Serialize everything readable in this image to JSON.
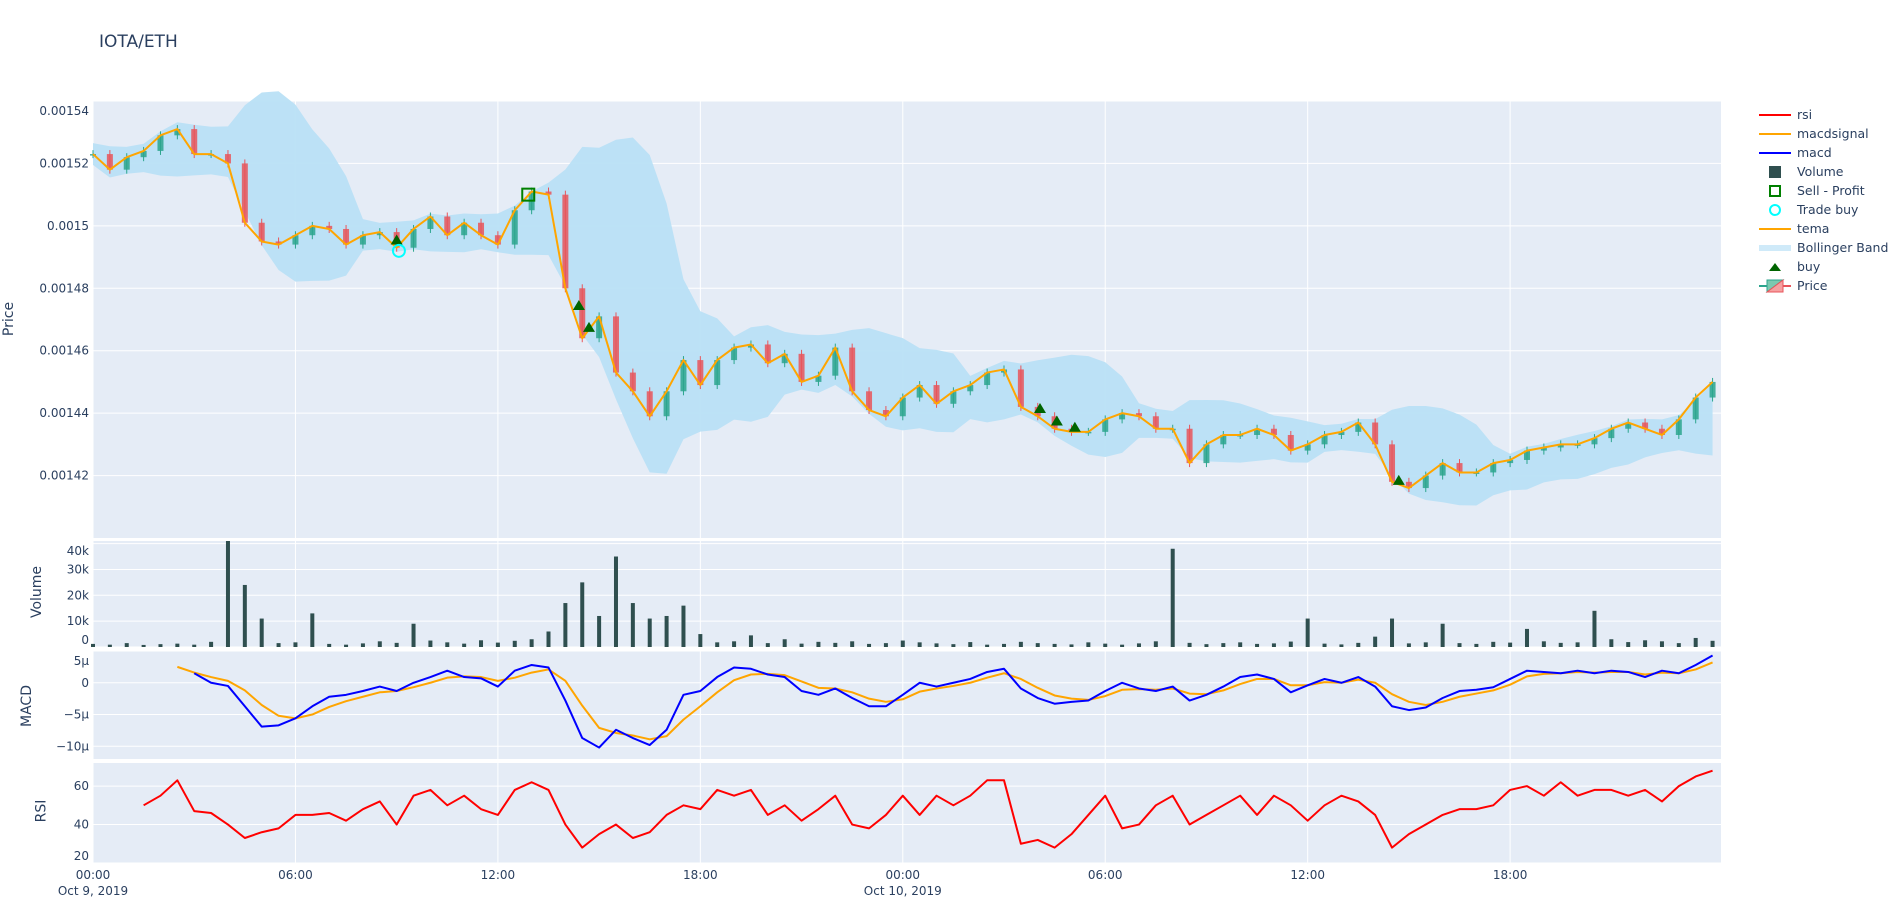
{
  "title": "IOTA/ETH",
  "legend": [
    {
      "label": "rsi",
      "symbol": "line",
      "color": "#ff0000"
    },
    {
      "label": "macdsignal",
      "symbol": "line",
      "color": "#ffa500"
    },
    {
      "label": "macd",
      "symbol": "line",
      "color": "#0000ff"
    },
    {
      "label": "Volume",
      "symbol": "square-filled",
      "color": "#2f4f4f"
    },
    {
      "label": "Sell - Profit",
      "symbol": "square-open",
      "color": "#008000"
    },
    {
      "label": "Trade buy",
      "symbol": "circle-open",
      "color": "#00ffff"
    },
    {
      "label": "tema",
      "symbol": "line",
      "color": "#ffa500"
    },
    {
      "label": "Bollinger Band",
      "symbol": "band",
      "color": "#b9e0f6"
    },
    {
      "label": "buy",
      "symbol": "triangle-up",
      "color": "#006400"
    },
    {
      "label": "Price",
      "symbol": "candle",
      "color": "#2ca58d"
    }
  ],
  "axis_titles": {
    "price": "Price",
    "volume": "Volume",
    "macd": "MACD",
    "rsi": "RSI"
  },
  "chart_data": {
    "type": "candlestick",
    "x_start": "2019-10-09T00:00",
    "interval_minutes": 30,
    "x_ticks": [
      {
        "label": "00:00",
        "sub": "Oct 9, 2019",
        "hour": 0
      },
      {
        "label": "06:00",
        "sub": "",
        "hour": 6
      },
      {
        "label": "12:00",
        "sub": "",
        "hour": 12
      },
      {
        "label": "18:00",
        "sub": "",
        "hour": 18
      },
      {
        "label": "00:00",
        "sub": "Oct 10, 2019",
        "hour": 24
      },
      {
        "label": "06:00",
        "sub": "",
        "hour": 30
      },
      {
        "label": "12:00",
        "sub": "",
        "hour": 36
      },
      {
        "label": "18:00",
        "sub": "",
        "hour": 42
      }
    ],
    "x_range_hours": [
      0,
      48.25
    ],
    "colors": {
      "increasing": "#2ca58d",
      "decreasing": "#e8555b",
      "tema": "#ffa500",
      "band": "#b9e0f6",
      "volume": "#2f4f4f",
      "macd": "#0000ff",
      "macdsignal": "#ffa500",
      "rsi": "#ff0000"
    },
    "price": {
      "ylim": [
        0.0014,
        0.00154
      ],
      "ticks": [
        "0.00142",
        "0.00144",
        "0.00146",
        "0.00148",
        "0.0015",
        "0.00152",
        "0.00154"
      ],
      "close": [
        0.001523,
        0.001518,
        0.001522,
        0.001524,
        0.001529,
        0.001531,
        0.001523,
        0.001523,
        0.00152,
        0.001501,
        0.001495,
        0.001494,
        0.001497,
        0.0015,
        0.001499,
        0.001494,
        0.001497,
        0.001498,
        0.001493,
        0.001499,
        0.001503,
        0.001497,
        0.001501,
        0.001497,
        0.001494,
        0.001505,
        0.001511,
        0.00151,
        0.00148,
        0.001464,
        0.001471,
        0.001453,
        0.001447,
        0.001439,
        0.001447,
        0.001457,
        0.001449,
        0.001457,
        0.001461,
        0.001462,
        0.001456,
        0.001459,
        0.00145,
        0.001452,
        0.001461,
        0.001447,
        0.001441,
        0.001439,
        0.001445,
        0.001449,
        0.001443,
        0.001447,
        0.001449,
        0.001453,
        0.001454,
        0.001442,
        0.001439,
        0.001435,
        0.001434,
        0.001434,
        0.001438,
        0.00144,
        0.001439,
        0.001435,
        0.001435,
        0.001424,
        0.00143,
        0.001433,
        0.001433,
        0.001435,
        0.001433,
        0.001428,
        0.00143,
        0.001433,
        0.001434,
        0.001437,
        0.00143,
        0.001418,
        0.001416,
        0.00142,
        0.001424,
        0.001421,
        0.001421,
        0.001424,
        0.001425,
        0.001428,
        0.001429,
        0.00143,
        0.00143,
        0.001432,
        0.001435,
        0.001437,
        0.001435,
        0.001433,
        0.001438,
        0.001445,
        0.00145
      ]
    },
    "buy": [
      {
        "time": "2019-10-09T09:00",
        "price": 0.001495
      },
      {
        "time": "2019-10-09T14:24",
        "price": 0.001474
      },
      {
        "time": "2019-10-09T14:42",
        "price": 0.001467
      },
      {
        "time": "2019-10-10T04:04",
        "price": 0.001441
      },
      {
        "time": "2019-10-10T04:34",
        "price": 0.001437
      },
      {
        "time": "2019-10-10T05:06",
        "price": 0.001435
      },
      {
        "time": "2019-10-10T14:42",
        "price": 0.001418
      }
    ],
    "trade_buy": [
      {
        "time": "2019-10-09T09:04",
        "price": 0.001492
      }
    ],
    "sell_profit": [
      {
        "time": "2019-10-09T12:54",
        "price": 0.00151
      }
    ],
    "volume": {
      "ylim": [
        0,
        41000
      ],
      "ticks": [
        "0",
        "10k",
        "20k",
        "30k",
        "40k"
      ],
      "values": [
        1200,
        900,
        1500,
        800,
        1100,
        1300,
        900,
        2000,
        41000,
        24000,
        11000,
        1500,
        1800,
        13000,
        1200,
        900,
        1400,
        2200,
        1600,
        9000,
        2500,
        1800,
        1300,
        2600,
        1700,
        2400,
        3000,
        6000,
        17000,
        25000,
        12000,
        35000,
        17000,
        11000,
        12000,
        16000,
        5000,
        1800,
        2200,
        4500,
        1500,
        3000,
        1300,
        2000,
        1600,
        2200,
        1200,
        1500,
        2500,
        1800,
        1400,
        1100,
        1900,
        900,
        1200,
        2000,
        1500,
        1200,
        1000,
        1800,
        1300,
        900,
        1400,
        2200,
        38000,
        1600,
        1100,
        1500,
        1800,
        1200,
        1400,
        2100,
        11000,
        1300,
        1000,
        1600,
        4000,
        11000,
        1400,
        1800,
        9000,
        1500,
        1200,
        2000,
        1700,
        7000,
        2200,
        1600,
        1800,
        14000,
        3000,
        1900,
        2600,
        2200,
        1500,
        3500,
        2400
      ]
    },
    "macd": {
      "ylim": [
        -1.2e-05,
        5e-06
      ],
      "ticks": [
        "5μ",
        "0",
        "−5μ",
        "−10μ"
      ],
      "tick_values": [
        5e-06,
        0,
        -5e-06,
        -1e-05
      ],
      "macd": [
        null,
        null,
        null,
        null,
        null,
        null,
        1.5e-06,
        0,
        -5e-07,
        -3.7e-06,
        -6.9e-06,
        -6.7e-06,
        -5.6e-06,
        -3.7e-06,
        -2.2e-06,
        -1.9e-06,
        -1.3e-06,
        -6e-07,
        -1.3e-06,
        0,
        9e-07,
        1.9e-06,
        9e-07,
        7e-07,
        -6e-07,
        1.9e-06,
        2.8e-06,
        2.4e-06,
        -2.8e-06,
        -8.7e-06,
        -1.02e-05,
        -7.4e-06,
        -8.7e-06,
        -9.8e-06,
        -7.4e-06,
        -1.9e-06,
        -1.3e-06,
        9e-07,
        2.4e-06,
        2.2e-06,
        1.3e-06,
        9e-07,
        -1.3e-06,
        -1.9e-06,
        -9e-07,
        -2.4e-06,
        -3.7e-06,
        -3.7e-06,
        -1.9e-06,
        0,
        -6e-07,
        0,
        6e-07,
        1.7e-06,
        2.2e-06,
        -9e-07,
        -2.4e-06,
        -3.3e-06,
        -3e-06,
        -2.8e-06,
        -1.3e-06,
        0,
        -9e-07,
        -1.3e-06,
        -6e-07,
        -2.8e-06,
        -1.9e-06,
        -6e-07,
        9e-07,
        1.3e-06,
        6e-07,
        -1.5e-06,
        -4e-07,
        6e-07,
        0,
        9e-07,
        -6e-07,
        -3.7e-06,
        -4.3e-06,
        -3.9e-06,
        -2.4e-06,
        -1.3e-06,
        -1.1e-06,
        -7e-07,
        6e-07,
        1.9e-06,
        1.7e-06,
        1.5e-06,
        1.9e-06,
        1.5e-06,
        1.9e-06,
        1.7e-06,
        9e-07,
        1.9e-06,
        1.5e-06,
        2.8e-06,
        4.3e-06
      ],
      "macdsignal": [
        null,
        null,
        null,
        null,
        null,
        2.5e-06,
        1.6e-06,
        9e-07,
        3e-07,
        -1.2e-06,
        -3.5e-06,
        -5.2e-06,
        -5.6e-06,
        -5e-06,
        -3.8e-06,
        -2.9e-06,
        -2.2e-06,
        -1.5e-06,
        -1.3e-06,
        -7e-07,
        0,
        8e-07,
        1e-06,
        9e-07,
        3e-07,
        8e-07,
        1.6e-06,
        2.1e-06,
        3e-07,
        -3.6e-06,
        -7.1e-06,
        -7.9e-06,
        -8.3e-06,
        -8.9e-06,
        -8.4e-06,
        -5.8e-06,
        -3.7e-06,
        -1.5e-06,
        4e-07,
        1.3e-06,
        1.4e-06,
        1.2e-06,
        2e-07,
        -8e-07,
        -9e-07,
        -1.5e-06,
        -2.5e-06,
        -3e-06,
        -2.6e-06,
        -1.4e-06,
        -9e-07,
        -5e-07,
        0,
        8e-07,
        1.5e-06,
        6e-07,
        -8e-07,
        -2e-06,
        -2.5e-06,
        -2.7e-06,
        -2.1e-06,
        -1.1e-06,
        -1e-06,
        -1.1e-06,
        -9e-07,
        -1.7e-06,
        -1.8e-06,
        -1.2e-06,
        -2e-07,
        6e-07,
        6e-07,
        -4e-07,
        -4e-07,
        1e-07,
        0,
        5e-07,
        0,
        -1.8e-06,
        -3e-06,
        -3.5e-06,
        -3e-06,
        -2.2e-06,
        -1.7e-06,
        -1.2e-06,
        -3e-07,
        1e-06,
        1.4e-06,
        1.5e-06,
        1.7e-06,
        1.6e-06,
        1.7e-06,
        1.7e-06,
        1.3e-06,
        1.6e-06,
        1.5e-06,
        2.1e-06,
        3.2e-06
      ]
    },
    "rsi": {
      "ylim": [
        20,
        72
      ],
      "ticks": [
        "20",
        "40",
        "60"
      ],
      "tick_values": [
        20,
        40,
        60
      ],
      "values": [
        null,
        null,
        null,
        50,
        55,
        63,
        47,
        46,
        40,
        33,
        36,
        38,
        45,
        45,
        46,
        42,
        48,
        52,
        40,
        55,
        58,
        50,
        55,
        48,
        45,
        58,
        62,
        58,
        40,
        28,
        35,
        40,
        33,
        36,
        45,
        50,
        48,
        58,
        55,
        58,
        45,
        50,
        42,
        48,
        55,
        40,
        38,
        45,
        55,
        45,
        55,
        50,
        55,
        63,
        63,
        30,
        32,
        28,
        35,
        45,
        55,
        38,
        40,
        50,
        55,
        40,
        45,
        50,
        55,
        45,
        55,
        50,
        42,
        50,
        55,
        52,
        45,
        28,
        35,
        40,
        45,
        48,
        48,
        50,
        58,
        60,
        55,
        62,
        55,
        58,
        58,
        55,
        58,
        52,
        60,
        65,
        68
      ]
    }
  }
}
